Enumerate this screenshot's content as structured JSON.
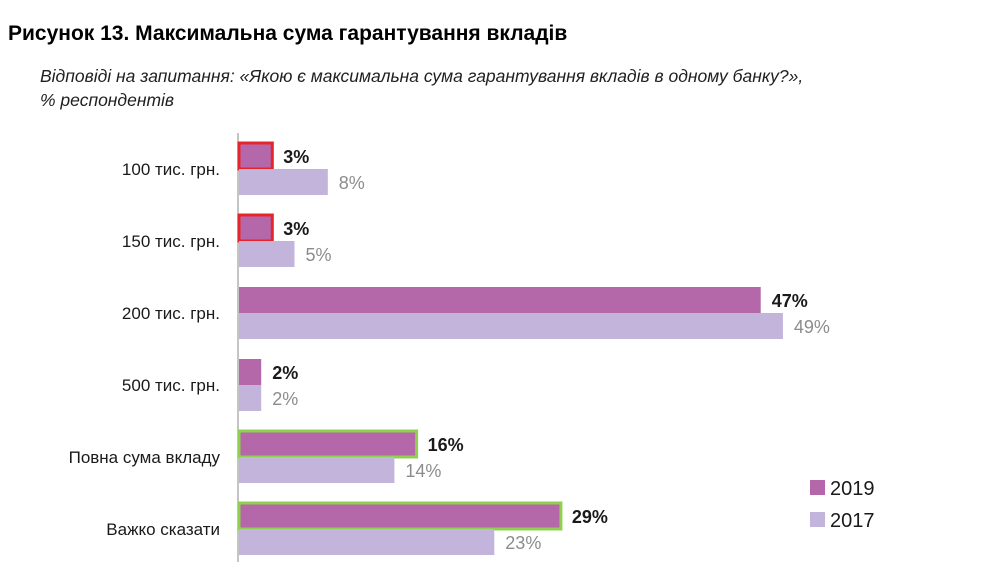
{
  "figure": {
    "title": "Рисунок 13. Максимальна сума гарантування вкладів",
    "subtitle_line1": "Відповіді на запитання: «Якою є максимальна сума гарантування вкладів в одному банку?»,",
    "subtitle_line2": "% респондентів"
  },
  "colors": {
    "series_2019": "#b467a9",
    "series_2017": "#c2b4da",
    "highlight_red": "#e8242b",
    "highlight_green": "#8fd14f",
    "axis": "#b0b0b0"
  },
  "chart_data": {
    "type": "bar",
    "orientation": "horizontal",
    "categories": [
      "100 тис. грн.",
      "150 тис. грн.",
      "200 тис. грн.",
      "500 тис. грн.",
      "Повна сума вкладу",
      "Важко сказати"
    ],
    "series": [
      {
        "name": "2019",
        "values": [
          3,
          3,
          47,
          2,
          16,
          29
        ],
        "labels": [
          "3%",
          "3%",
          "47%",
          "2%",
          "16%",
          "29%"
        ],
        "highlight": [
          "red",
          "red",
          "none",
          "none",
          "green",
          "green"
        ]
      },
      {
        "name": "2017",
        "values": [
          8,
          5,
          49,
          2,
          14,
          23
        ],
        "labels": [
          "8%",
          "5%",
          "49%",
          "2%",
          "14%",
          "23%"
        ]
      }
    ],
    "xlim": [
      0,
      50
    ],
    "legend": {
      "position": "bottom-right",
      "entries": [
        "2019",
        "2017"
      ]
    },
    "grid": false
  }
}
